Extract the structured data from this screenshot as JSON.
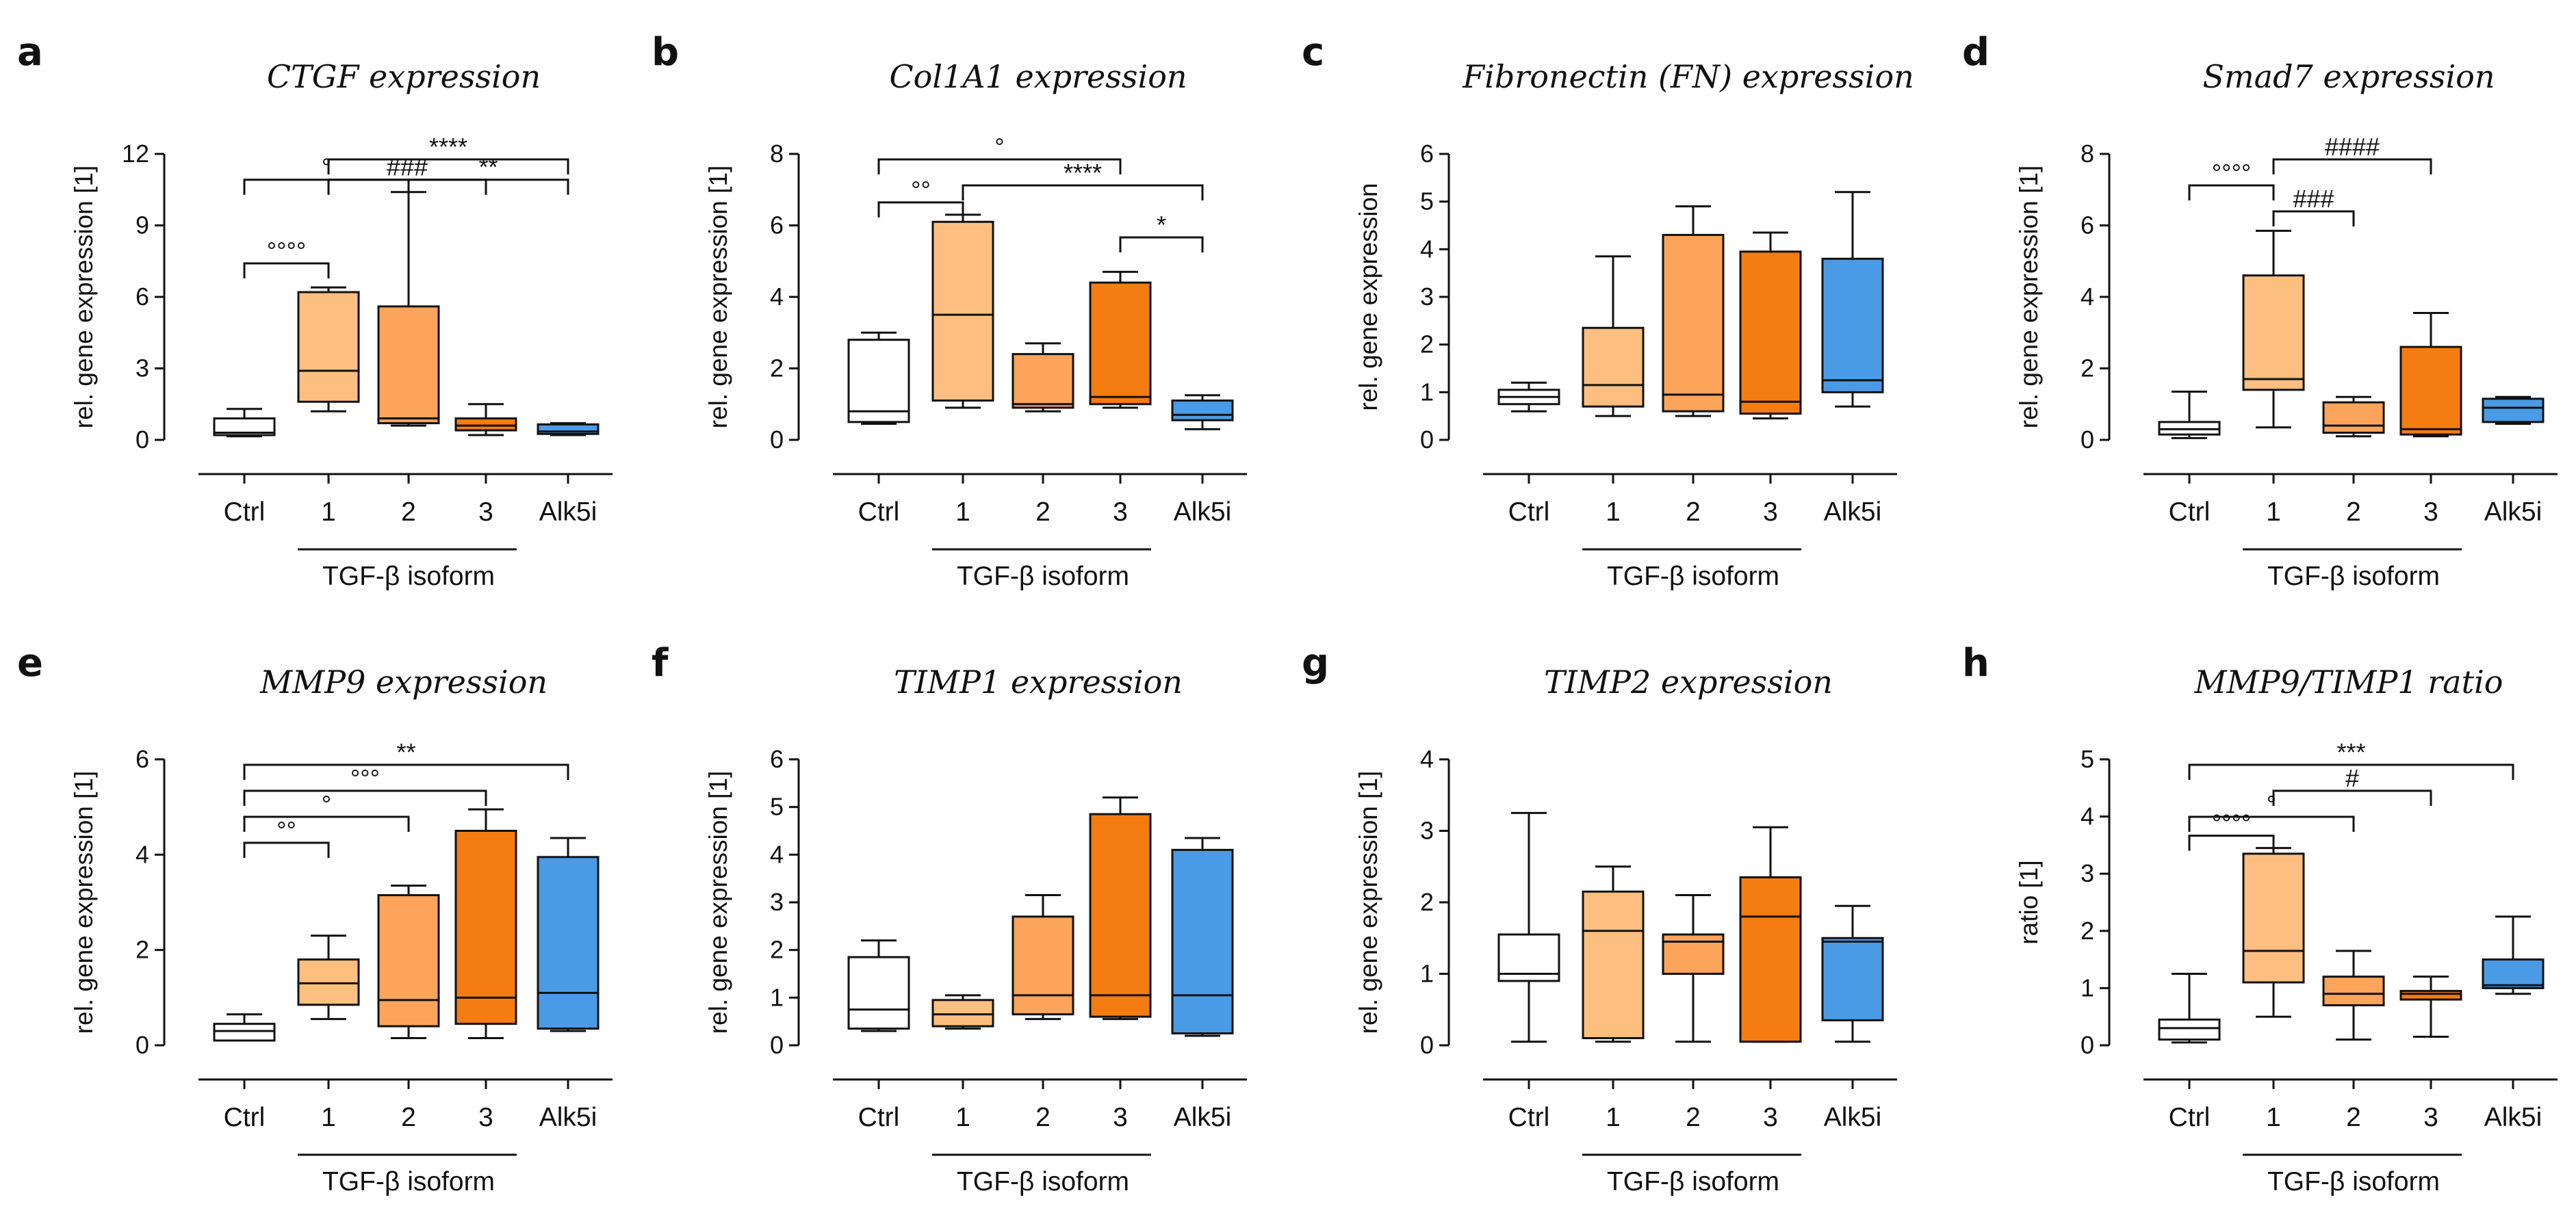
{
  "figure": {
    "colors": {
      "Ctrl": "#ffffff",
      "TGF-β1": "#fdbf80",
      "TGF-β2": "#fba45a",
      "TGF-β3": "#f57c10",
      "Alk5i": "#4a9be6"
    }
  },
  "chart_data": [
    {
      "panel": "a",
      "type": "boxplot",
      "title": "CTGF expression",
      "ylabel": "rel. gene expression [1]",
      "ylim": [
        0,
        12
      ],
      "yticks": [
        0,
        3,
        6,
        9,
        12
      ],
      "categories": [
        "Ctrl",
        "1",
        "2",
        "3",
        "Alk5i"
      ],
      "group_label": "TGF-β isoform",
      "boxes": [
        {
          "min": 0.15,
          "q1": 0.2,
          "median": 0.3,
          "q3": 0.9,
          "max": 1.3
        },
        {
          "min": 1.2,
          "q1": 1.6,
          "median": 2.9,
          "q3": 6.2,
          "max": 6.4
        },
        {
          "min": 0.6,
          "q1": 0.7,
          "median": 0.9,
          "q3": 5.6,
          "max": 10.4
        },
        {
          "min": 0.2,
          "q1": 0.4,
          "median": 0.6,
          "q3": 0.9,
          "max": 1.5
        },
        {
          "min": 0.2,
          "q1": 0.25,
          "median": 0.35,
          "q3": 0.65,
          "max": 0.7
        }
      ],
      "annotations": [
        {
          "from": 0,
          "to": 2,
          "text": "°"
        },
        {
          "from": 0,
          "to": 1,
          "text": "°°°°"
        },
        {
          "from": 2,
          "to": 4,
          "text": "**"
        },
        {
          "from": 1,
          "to": 3,
          "text": "###"
        },
        {
          "from": 1,
          "to": 4,
          "text": "****"
        }
      ]
    },
    {
      "panel": "b",
      "type": "boxplot",
      "title": "Col1A1 expression",
      "ylabel": "rel. gene expression [1]",
      "ylim": [
        0,
        8
      ],
      "yticks": [
        0,
        2,
        4,
        6,
        8
      ],
      "categories": [
        "Ctrl",
        "1",
        "2",
        "3",
        "Alk5i"
      ],
      "group_label": "TGF-β isoform",
      "boxes": [
        {
          "min": 0.45,
          "q1": 0.5,
          "median": 0.8,
          "q3": 2.8,
          "max": 3.0
        },
        {
          "min": 0.9,
          "q1": 1.1,
          "median": 3.5,
          "q3": 6.1,
          "max": 6.3
        },
        {
          "min": 0.8,
          "q1": 0.9,
          "median": 1.0,
          "q3": 2.4,
          "max": 2.7
        },
        {
          "min": 0.9,
          "q1": 1.0,
          "median": 1.2,
          "q3": 4.4,
          "max": 4.7
        },
        {
          "min": 0.3,
          "q1": 0.55,
          "median": 0.7,
          "q3": 1.1,
          "max": 1.25
        }
      ],
      "annotations": [
        {
          "from": 0,
          "to": 1,
          "text": "°°"
        },
        {
          "from": 0,
          "to": 3,
          "text": "°"
        },
        {
          "from": 1,
          "to": 4,
          "text": "****"
        },
        {
          "from": 3,
          "to": 4,
          "text": "*"
        }
      ]
    },
    {
      "panel": "c",
      "type": "boxplot",
      "title": "Fibronectin (FN) expression",
      "ylabel": "rel. gene expression",
      "ylim": [
        0,
        6
      ],
      "yticks": [
        0,
        1,
        2,
        3,
        4,
        5,
        6
      ],
      "categories": [
        "Ctrl",
        "1",
        "2",
        "3",
        "Alk5i"
      ],
      "group_label": "TGF-β isoform",
      "boxes": [
        {
          "min": 0.6,
          "q1": 0.75,
          "median": 0.9,
          "q3": 1.05,
          "max": 1.2
        },
        {
          "min": 0.5,
          "q1": 0.7,
          "median": 1.15,
          "q3": 2.35,
          "max": 3.85
        },
        {
          "min": 0.5,
          "q1": 0.6,
          "median": 0.95,
          "q3": 4.3,
          "max": 4.9
        },
        {
          "min": 0.45,
          "q1": 0.55,
          "median": 0.8,
          "q3": 3.95,
          "max": 4.35
        },
        {
          "min": 0.7,
          "q1": 1.0,
          "median": 1.25,
          "q3": 3.8,
          "max": 5.2
        }
      ],
      "annotations": []
    },
    {
      "panel": "d",
      "type": "boxplot",
      "title": "Smad7 expression",
      "ylabel": "rel. gene expression [1]",
      "ylim": [
        0,
        8
      ],
      "yticks": [
        0,
        2,
        4,
        6,
        8
      ],
      "categories": [
        "Ctrl",
        "1",
        "2",
        "3",
        "Alk5i"
      ],
      "group_label": "TGF-β isoform",
      "boxes": [
        {
          "min": 0.05,
          "q1": 0.15,
          "median": 0.3,
          "q3": 0.5,
          "max": 1.35
        },
        {
          "min": 0.35,
          "q1": 1.4,
          "median": 1.7,
          "q3": 4.6,
          "max": 5.85
        },
        {
          "min": 0.1,
          "q1": 0.2,
          "median": 0.4,
          "q3": 1.05,
          "max": 1.2
        },
        {
          "min": 0.1,
          "q1": 0.15,
          "median": 0.3,
          "q3": 2.6,
          "max": 3.55
        },
        {
          "min": 0.45,
          "q1": 0.5,
          "median": 0.9,
          "q3": 1.15,
          "max": 1.2
        }
      ],
      "annotations": [
        {
          "from": 0,
          "to": 1,
          "text": "°°°°"
        },
        {
          "from": 1,
          "to": 2,
          "text": "###"
        },
        {
          "from": 1,
          "to": 3,
          "text": "####"
        }
      ]
    },
    {
      "panel": "e",
      "type": "boxplot",
      "title": "MMP9 expression",
      "ylabel": "rel. gene expression [1]",
      "ylim": [
        0,
        6
      ],
      "yticks": [
        0,
        2,
        4,
        6
      ],
      "categories": [
        "Ctrl",
        "1",
        "2",
        "3",
        "Alk5i"
      ],
      "group_label": "TGF-β isoform",
      "boxes": [
        {
          "min": 0.1,
          "q1": 0.1,
          "median": 0.3,
          "q3": 0.45,
          "max": 0.65
        },
        {
          "min": 0.55,
          "q1": 0.85,
          "median": 1.3,
          "q3": 1.8,
          "max": 2.3
        },
        {
          "min": 0.15,
          "q1": 0.4,
          "median": 0.95,
          "q3": 3.15,
          "max": 3.35
        },
        {
          "min": 0.15,
          "q1": 0.45,
          "median": 1.0,
          "q3": 4.5,
          "max": 4.95
        },
        {
          "min": 0.3,
          "q1": 0.35,
          "median": 1.1,
          "q3": 3.95,
          "max": 4.35
        }
      ],
      "annotations": [
        {
          "from": 0,
          "to": 4,
          "text": "**"
        },
        {
          "from": 0,
          "to": 3,
          "text": "°°°"
        },
        {
          "from": 0,
          "to": 2,
          "text": "°"
        },
        {
          "from": 0,
          "to": 1,
          "text": "°°"
        }
      ]
    },
    {
      "panel": "f",
      "type": "boxplot",
      "title": "TIMP1 expression",
      "ylabel": "rel. gene expression [1]",
      "ylim": [
        0,
        6
      ],
      "yticks": [
        0,
        1,
        2,
        3,
        4,
        5,
        6
      ],
      "categories": [
        "Ctrl",
        "1",
        "2",
        "3",
        "Alk5i"
      ],
      "group_label": "TGF-β isoform",
      "boxes": [
        {
          "min": 0.3,
          "q1": 0.35,
          "median": 0.75,
          "q3": 1.85,
          "max": 2.2
        },
        {
          "min": 0.35,
          "q1": 0.4,
          "median": 0.65,
          "q3": 0.95,
          "max": 1.05
        },
        {
          "min": 0.55,
          "q1": 0.65,
          "median": 1.05,
          "q3": 2.7,
          "max": 3.15
        },
        {
          "min": 0.55,
          "q1": 0.6,
          "median": 1.05,
          "q3": 4.85,
          "max": 5.2
        },
        {
          "min": 0.2,
          "q1": 0.25,
          "median": 1.05,
          "q3": 4.1,
          "max": 4.35
        }
      ],
      "annotations": []
    },
    {
      "panel": "g",
      "type": "boxplot",
      "title": "TIMP2 expression",
      "ylabel": "rel. gene expression [1]",
      "ylim": [
        0,
        4
      ],
      "yticks": [
        0,
        1,
        2,
        3,
        4
      ],
      "categories": [
        "Ctrl",
        "1",
        "2",
        "3",
        "Alk5i"
      ],
      "group_label": "TGF-β isoform",
      "boxes": [
        {
          "min": 0.05,
          "q1": 0.9,
          "median": 1.0,
          "q3": 1.55,
          "max": 3.25
        },
        {
          "min": 0.05,
          "q1": 0.1,
          "median": 1.6,
          "q3": 2.15,
          "max": 2.5
        },
        {
          "min": 0.05,
          "q1": 1.0,
          "median": 1.45,
          "q3": 1.55,
          "max": 2.1
        },
        {
          "min": 0.05,
          "q1": 0.05,
          "median": 1.8,
          "q3": 2.35,
          "max": 3.05
        },
        {
          "min": 0.05,
          "q1": 0.35,
          "median": 1.45,
          "q3": 1.5,
          "max": 1.95
        }
      ],
      "annotations": []
    },
    {
      "panel": "h",
      "type": "boxplot",
      "title": "MMP9/TIMP1 ratio",
      "ylabel": "ratio [1]",
      "ylim": [
        0,
        5
      ],
      "yticks": [
        0,
        1,
        2,
        3,
        4,
        5
      ],
      "categories": [
        "Ctrl",
        "1",
        "2",
        "3",
        "Alk5i"
      ],
      "group_label": "TGF-β isoform",
      "boxes": [
        {
          "min": 0.05,
          "q1": 0.1,
          "median": 0.3,
          "q3": 0.45,
          "max": 1.25
        },
        {
          "min": 0.5,
          "q1": 1.1,
          "median": 1.65,
          "q3": 3.35,
          "max": 3.45
        },
        {
          "min": 0.1,
          "q1": 0.7,
          "median": 0.9,
          "q3": 1.2,
          "max": 1.65
        },
        {
          "min": 0.15,
          "q1": 0.8,
          "median": 0.9,
          "q3": 0.95,
          "max": 1.2
        },
        {
          "min": 0.9,
          "q1": 1.0,
          "median": 1.05,
          "q3": 1.5,
          "max": 2.25
        }
      ],
      "annotations": [
        {
          "from": 0,
          "to": 4,
          "text": "***"
        },
        {
          "from": 0,
          "to": 1,
          "text": "°°°°"
        },
        {
          "from": 1,
          "to": 3,
          "text": "#"
        },
        {
          "from": 0,
          "to": 2,
          "text": "°"
        }
      ]
    }
  ]
}
